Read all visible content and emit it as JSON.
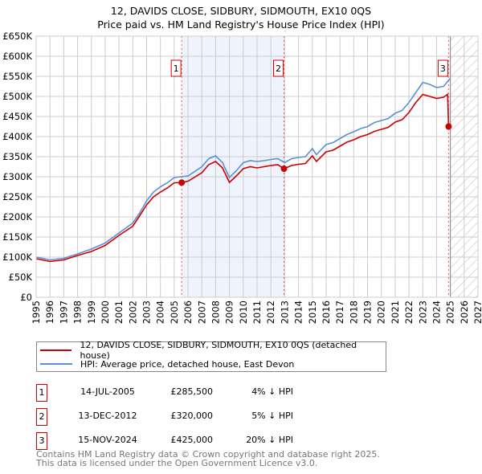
{
  "chart_data": {
    "type": "line",
    "title": "12, DAVIDS CLOSE, SIDBURY, SIDMOUTH, EX10 0QS",
    "subtitle": "Price paid vs. HM Land Registry's House Price Index (HPI)",
    "xlim": [
      1995,
      2027
    ],
    "ylim": [
      0,
      650000
    ],
    "x_ticks": [
      "1995",
      "1996",
      "1997",
      "1998",
      "1999",
      "2000",
      "2001",
      "2002",
      "2003",
      "2004",
      "2005",
      "2006",
      "2007",
      "2008",
      "2009",
      "2010",
      "2011",
      "2012",
      "2013",
      "2014",
      "2015",
      "2016",
      "2017",
      "2018",
      "2019",
      "2020",
      "2021",
      "2022",
      "2023",
      "2024",
      "2025",
      "2026",
      "2027"
    ],
    "y_ticks": [
      {
        "value": 0,
        "label": "£0"
      },
      {
        "value": 50000,
        "label": "£50K"
      },
      {
        "value": 100000,
        "label": "£100K"
      },
      {
        "value": 150000,
        "label": "£150K"
      },
      {
        "value": 200000,
        "label": "£200K"
      },
      {
        "value": 250000,
        "label": "£250K"
      },
      {
        "value": 300000,
        "label": "£300K"
      },
      {
        "value": 350000,
        "label": "£350K"
      },
      {
        "value": 400000,
        "label": "£400K"
      },
      {
        "value": 450000,
        "label": "£450K"
      },
      {
        "value": 500000,
        "label": "£500K"
      },
      {
        "value": 550000,
        "label": "£550K"
      },
      {
        "value": 600000,
        "label": "£600K"
      },
      {
        "value": 650000,
        "label": "£650K"
      }
    ],
    "grid": true,
    "forecast_hatch_from": 2025.0,
    "shaded_range": [
      2005.54,
      2012.95
    ],
    "series": [
      {
        "name": "12, DAVIDS CLOSE, SIDBURY, SIDMOUTH, EX10 0QS (detached house)",
        "color": "#cc0000",
        "x": [
          1995,
          1996,
          1997,
          1998,
          1999,
          2000,
          2001,
          2002,
          2002.5,
          2003,
          2003.5,
          2004,
          2004.5,
          2005,
          2005.54,
          2006,
          2007,
          2007.5,
          2008,
          2008.5,
          2009,
          2009.5,
          2010,
          2010.5,
          2011,
          2011.5,
          2012,
          2012.5,
          2012.95,
          2013.5,
          2014,
          2014.5,
          2015,
          2015.3,
          2016,
          2016.5,
          2017,
          2017.5,
          2018,
          2018.5,
          2019,
          2019.5,
          2020,
          2020.5,
          2021,
          2021.5,
          2022,
          2022.5,
          2023,
          2023.5,
          2024,
          2024.5,
          2024.8,
          2024.87,
          2025.0
        ],
        "y": [
          96000,
          89000,
          93000,
          104000,
          114000,
          129000,
          154000,
          177000,
          203000,
          230000,
          250000,
          262000,
          272000,
          285000,
          285500,
          289000,
          310000,
          330000,
          338000,
          322000,
          286000,
          302000,
          320000,
          325000,
          322000,
          325000,
          328000,
          330000,
          320000,
          328000,
          331000,
          333000,
          352000,
          338000,
          362000,
          366000,
          376000,
          386000,
          392000,
          400000,
          405000,
          413000,
          418000,
          423000,
          436000,
          442000,
          460000,
          485000,
          505000,
          500000,
          495000,
          498000,
          505000,
          425000,
          432000
        ]
      },
      {
        "name": "HPI: Average price, detached house, East Devon",
        "color": "#5b8fd6",
        "x": [
          1995,
          1996,
          1997,
          1998,
          1999,
          2000,
          2001,
          2002,
          2002.5,
          2003,
          2003.5,
          2004,
          2004.5,
          2005,
          2005.5,
          2006,
          2007,
          2007.5,
          2008,
          2008.5,
          2009,
          2009.5,
          2010,
          2010.5,
          2011,
          2011.5,
          2012,
          2012.5,
          2013,
          2013.5,
          2014,
          2014.5,
          2015,
          2015.3,
          2016,
          2016.5,
          2017,
          2017.5,
          2018,
          2018.5,
          2019,
          2019.5,
          2020,
          2020.5,
          2021,
          2021.5,
          2022,
          2022.5,
          2023,
          2023.5,
          2024,
          2024.5,
          2025.0
        ],
        "y": [
          100000,
          93000,
          97000,
          108000,
          120000,
          135000,
          160000,
          185000,
          210000,
          240000,
          262000,
          275000,
          285000,
          298000,
          300000,
          302000,
          325000,
          345000,
          352000,
          335000,
          298000,
          315000,
          335000,
          340000,
          338000,
          340000,
          343000,
          345000,
          335000,
          345000,
          348000,
          350000,
          370000,
          355000,
          380000,
          385000,
          395000,
          405000,
          412000,
          420000,
          425000,
          435000,
          440000,
          445000,
          458000,
          465000,
          485000,
          510000,
          535000,
          530000,
          522000,
          525000,
          545000
        ]
      }
    ],
    "sales": [
      {
        "id": "1",
        "x": 2005.54,
        "price": 285500
      },
      {
        "id": "2",
        "x": 2012.95,
        "price": 320000
      },
      {
        "id": "3",
        "x": 2024.87,
        "price": 425000
      }
    ]
  },
  "legend": {
    "property": "12, DAVIDS CLOSE, SIDBURY, SIDMOUTH, EX10 0QS (detached house)",
    "hpi": "HPI: Average price, detached house, East Devon"
  },
  "sales_table": [
    {
      "id": "1",
      "date": "14-JUL-2005",
      "price": "£285,500",
      "hpi": "4% ↓ HPI"
    },
    {
      "id": "2",
      "date": "13-DEC-2012",
      "price": "£320,000",
      "hpi": "5% ↓ HPI"
    },
    {
      "id": "3",
      "date": "15-NOV-2024",
      "price": "£425,000",
      "hpi": "20% ↓ HPI"
    }
  ],
  "footer": {
    "line1": "Contains HM Land Registry data © Crown copyright and database right 2025.",
    "line2": "This data is licensed under the Open Government Licence v3.0."
  },
  "colors": {
    "property": "#cc0000",
    "hpi": "#5b8fd6",
    "shade": "#eef3fc",
    "grid": "#cccccc"
  }
}
